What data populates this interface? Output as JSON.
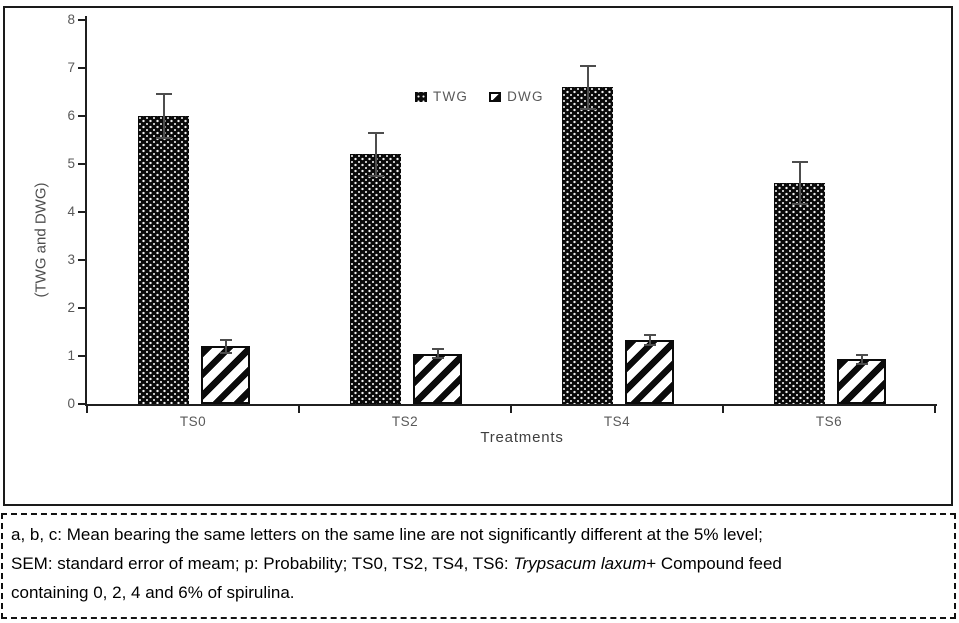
{
  "chart_data": {
    "type": "bar",
    "title": "",
    "xlabel": "Treatments",
    "ylabel": "(TWG and DWG)",
    "categories": [
      "TS0",
      "TS2",
      "TS4",
      "TS6"
    ],
    "series": [
      {
        "name": "TWG",
        "pattern": "black-dotted",
        "values": [
          6.0,
          5.2,
          6.6,
          4.6
        ],
        "errors": [
          0.45,
          0.45,
          0.45,
          0.44
        ]
      },
      {
        "name": "DWG",
        "pattern": "diagonal-hatch",
        "values": [
          1.2,
          1.05,
          1.33,
          0.93
        ],
        "errors": [
          0.13,
          0.1,
          0.1,
          0.1
        ]
      }
    ],
    "ylim": [
      0,
      8
    ],
    "yticks": [
      0,
      1,
      2,
      3,
      4,
      5,
      6,
      7,
      8
    ],
    "grid": false,
    "error_bars": true,
    "legend_position": "top-center-inside",
    "colors": {
      "bar_black": "#0a0a0a",
      "axis_text": "#595959",
      "error_bar": "#4d4d4d",
      "axis_line": "#1f1f1f"
    }
  },
  "footnote": {
    "line1": "a, b, c: Mean bearing the same letters on the same line are not significantly different at the 5% level;",
    "line2_pre": "SEM: standard error of meam; p: Probability; TS0, TS2, TS4, TS6: ",
    "line2_italic": "Trypsacum laxum",
    "line2_post": "+ Compound feed",
    "line3": "containing 0, 2, 4 and 6% of spirulina."
  }
}
